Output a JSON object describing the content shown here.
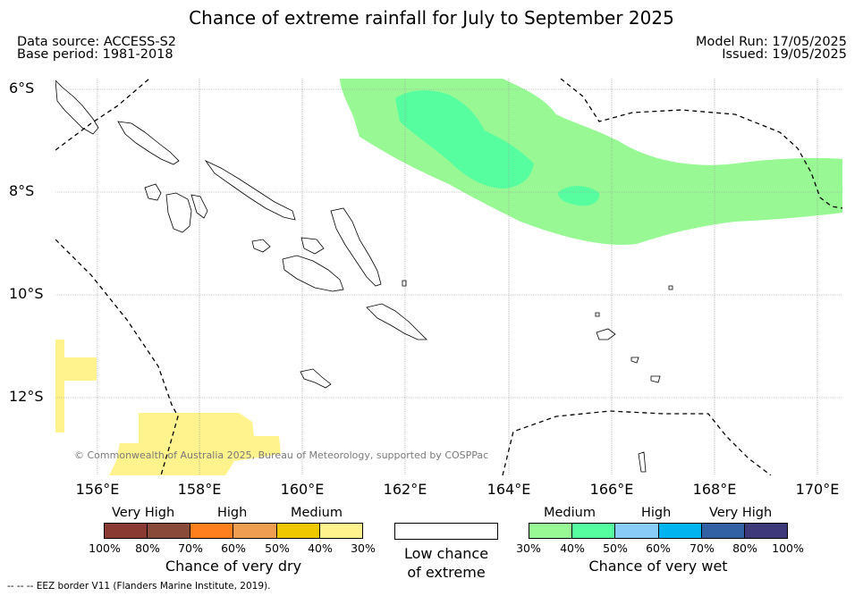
{
  "title": "Chance of extreme rainfall for July to September 2025",
  "meta": {
    "data_source": "Data source: ACCESS-S2",
    "base_period": "Base period: 1981-2018",
    "model_run": "Model Run: 17/05/2025",
    "issued": "Issued: 19/05/2025"
  },
  "axes": {
    "lat_labels": [
      "6°S",
      "8°S",
      "10°S",
      "12°S"
    ],
    "lon_labels": [
      "156°E",
      "158°E",
      "160°E",
      "162°E",
      "164°E",
      "166°E",
      "168°E",
      "170°E"
    ]
  },
  "copyright": "© Commonwealth of Australia 2025, Bureau of Meteorology, supported by COSPPac",
  "legend": {
    "dry": {
      "levels": [
        "Very High",
        "High",
        "Medium"
      ],
      "ticks": [
        "100%",
        "80%",
        "70%",
        "60%",
        "50%",
        "40%",
        "30%"
      ],
      "colors": [
        "#8b3a33",
        "#8a4a3a",
        "#ff7f1f",
        "#ef9d50",
        "#f0c800",
        "#fef38c"
      ],
      "caption": "Chance of very dry"
    },
    "low": {
      "caption_line1": "Low chance",
      "caption_line2": "of extreme",
      "color": "#ffffff"
    },
    "wet": {
      "levels": [
        "Medium",
        "High",
        "Very High"
      ],
      "ticks": [
        "30%",
        "40%",
        "50%",
        "60%",
        "70%",
        "80%",
        "100%"
      ],
      "colors": [
        "#98f994",
        "#56fea0",
        "#88ccf7",
        "#00b4f0",
        "#3262a4",
        "#3e3a79"
      ],
      "caption": "Chance of very wet"
    }
  },
  "eez_note": "--  --  -- EEZ border V11 (Flanders Marine Institute, 2019)."
}
